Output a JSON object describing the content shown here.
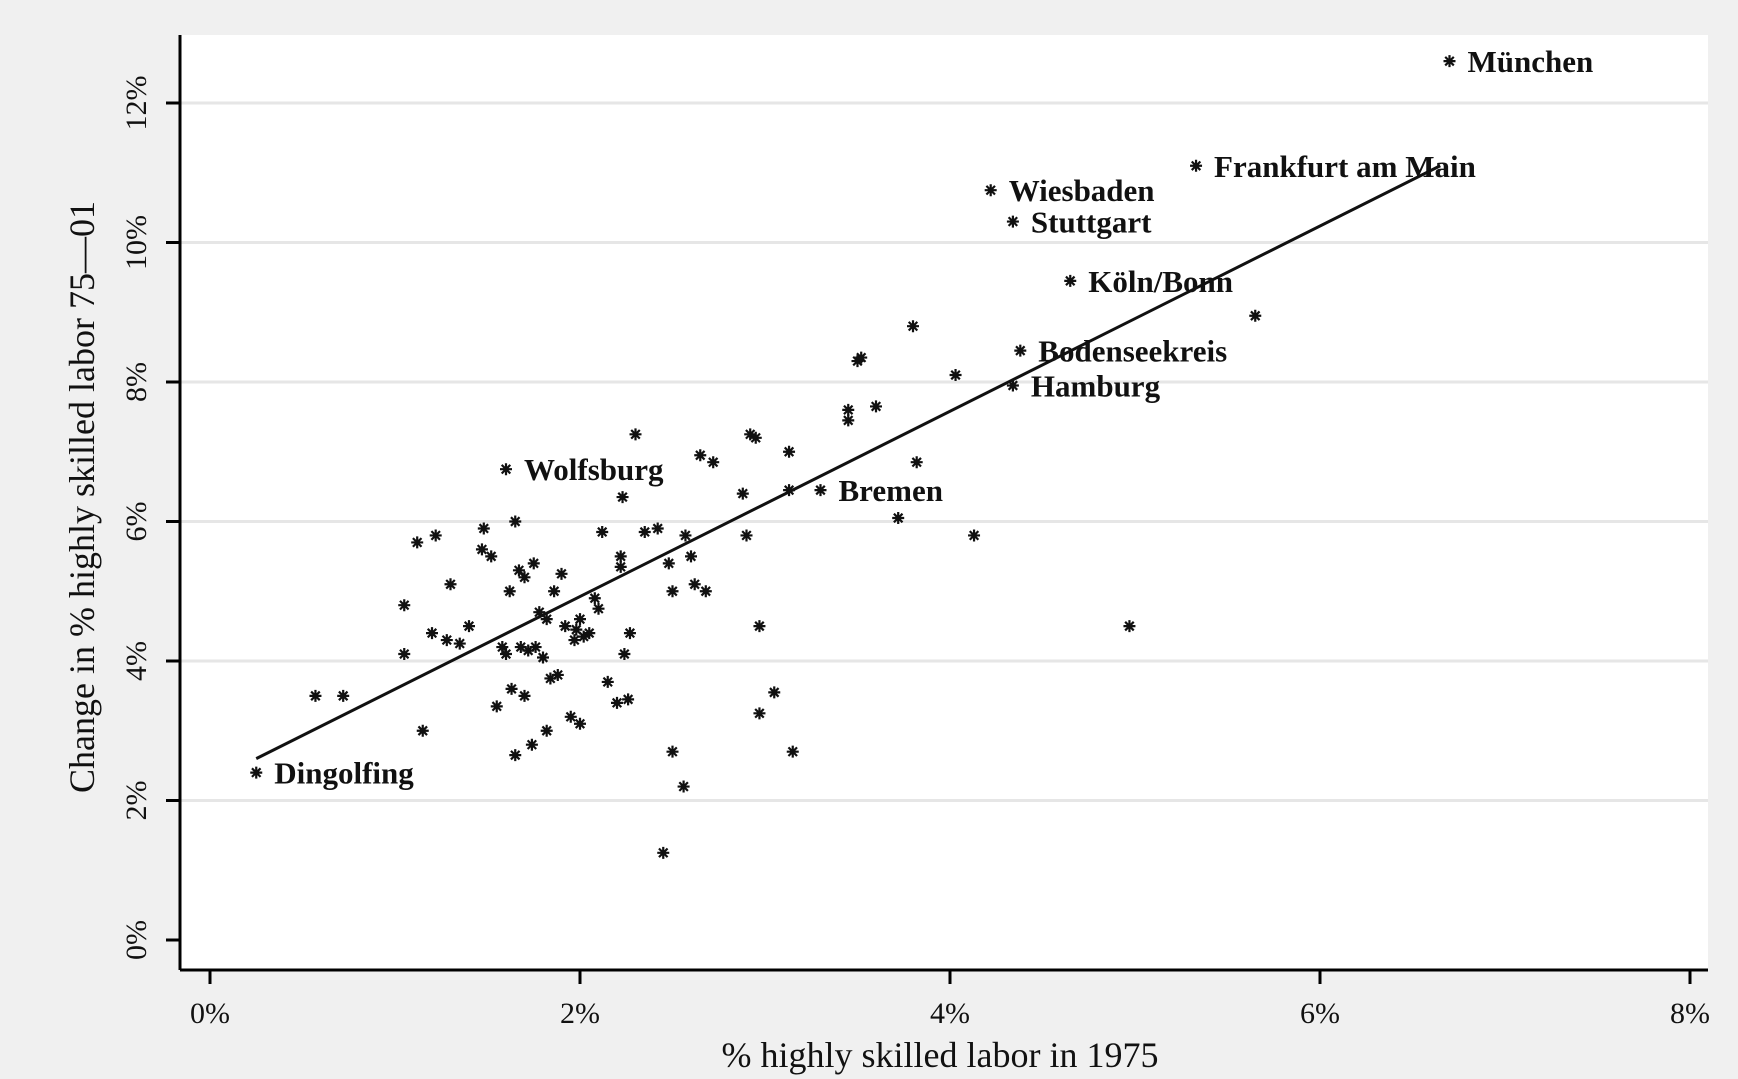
{
  "chart_data": {
    "type": "scatter",
    "xlabel": "% highly skilled labor in 1975",
    "ylabel": "Change in % highly skilled labor 75—01",
    "xlim": [
      0,
      8
    ],
    "ylim": [
      0,
      12.5
    ],
    "xticks": [
      0,
      2,
      4,
      6,
      8
    ],
    "yticks": [
      0,
      2,
      4,
      6,
      8,
      10,
      12
    ],
    "xtick_labels": [
      "0%",
      "2%",
      "4%",
      "6%",
      "8%"
    ],
    "ytick_labels": [
      "0%",
      "2%",
      "4%",
      "6%",
      "8%",
      "10%",
      "12%"
    ],
    "grid": "horizontal",
    "fit_line": {
      "x": [
        0.25,
        6.65
      ],
      "y": [
        2.6,
        11.1
      ]
    },
    "labeled_points": [
      {
        "label": "München",
        "x": 6.7,
        "y": 12.6
      },
      {
        "label": "Frankfurt am Main",
        "x": 5.33,
        "y": 11.1
      },
      {
        "label": "Wiesbaden",
        "x": 4.22,
        "y": 10.75
      },
      {
        "label": "Stuttgart",
        "x": 4.34,
        "y": 10.3
      },
      {
        "label": "Köln/Bonn",
        "x": 4.65,
        "y": 9.45
      },
      {
        "label": "Bodenseekreis",
        "x": 4.38,
        "y": 8.45
      },
      {
        "label": "Hamburg",
        "x": 4.34,
        "y": 7.95
      },
      {
        "label": "Wolfsburg",
        "x": 1.6,
        "y": 6.75
      },
      {
        "label": "Bremen",
        "x": 3.3,
        "y": 6.45
      },
      {
        "label": "Dingolfing",
        "x": 0.25,
        "y": 2.4
      }
    ],
    "points": [
      {
        "x": 0.57,
        "y": 3.5
      },
      {
        "x": 0.72,
        "y": 3.5
      },
      {
        "x": 1.05,
        "y": 4.8
      },
      {
        "x": 1.05,
        "y": 4.1
      },
      {
        "x": 1.12,
        "y": 5.7
      },
      {
        "x": 1.15,
        "y": 3.0
      },
      {
        "x": 1.2,
        "y": 4.4
      },
      {
        "x": 1.22,
        "y": 5.8
      },
      {
        "x": 1.28,
        "y": 4.3
      },
      {
        "x": 1.3,
        "y": 5.1
      },
      {
        "x": 1.35,
        "y": 4.25
      },
      {
        "x": 1.4,
        "y": 4.5
      },
      {
        "x": 1.47,
        "y": 5.6
      },
      {
        "x": 1.48,
        "y": 5.9
      },
      {
        "x": 1.52,
        "y": 5.5
      },
      {
        "x": 1.55,
        "y": 3.35
      },
      {
        "x": 1.58,
        "y": 4.2
      },
      {
        "x": 1.6,
        "y": 4.1
      },
      {
        "x": 1.62,
        "y": 5.0
      },
      {
        "x": 1.63,
        "y": 3.6
      },
      {
        "x": 1.65,
        "y": 6.0
      },
      {
        "x": 1.65,
        "y": 2.65
      },
      {
        "x": 1.67,
        "y": 5.3
      },
      {
        "x": 1.68,
        "y": 4.2
      },
      {
        "x": 1.7,
        "y": 5.2
      },
      {
        "x": 1.7,
        "y": 3.5
      },
      {
        "x": 1.72,
        "y": 4.15
      },
      {
        "x": 1.74,
        "y": 2.8
      },
      {
        "x": 1.75,
        "y": 5.4
      },
      {
        "x": 1.76,
        "y": 4.2
      },
      {
        "x": 1.78,
        "y": 4.7
      },
      {
        "x": 1.8,
        "y": 4.05
      },
      {
        "x": 1.82,
        "y": 3.0
      },
      {
        "x": 1.82,
        "y": 4.6
      },
      {
        "x": 1.84,
        "y": 3.75
      },
      {
        "x": 1.86,
        "y": 5.0
      },
      {
        "x": 1.88,
        "y": 3.8
      },
      {
        "x": 1.9,
        "y": 5.25
      },
      {
        "x": 1.92,
        "y": 4.5
      },
      {
        "x": 1.95,
        "y": 3.2
      },
      {
        "x": 1.97,
        "y": 4.3
      },
      {
        "x": 1.98,
        "y": 4.45
      },
      {
        "x": 2.0,
        "y": 3.1
      },
      {
        "x": 2.0,
        "y": 4.6
      },
      {
        "x": 2.02,
        "y": 4.35
      },
      {
        "x": 2.05,
        "y": 4.4
      },
      {
        "x": 2.08,
        "y": 4.9
      },
      {
        "x": 2.1,
        "y": 4.75
      },
      {
        "x": 2.12,
        "y": 5.85
      },
      {
        "x": 2.15,
        "y": 3.7
      },
      {
        "x": 2.2,
        "y": 3.4
      },
      {
        "x": 2.22,
        "y": 5.5
      },
      {
        "x": 2.22,
        "y": 5.35
      },
      {
        "x": 2.23,
        "y": 6.35
      },
      {
        "x": 2.24,
        "y": 4.1
      },
      {
        "x": 2.26,
        "y": 3.45
      },
      {
        "x": 2.27,
        "y": 4.4
      },
      {
        "x": 2.3,
        "y": 7.25
      },
      {
        "x": 2.35,
        "y": 5.85
      },
      {
        "x": 2.42,
        "y": 5.9
      },
      {
        "x": 2.45,
        "y": 1.25
      },
      {
        "x": 2.48,
        "y": 5.4
      },
      {
        "x": 2.5,
        "y": 2.7
      },
      {
        "x": 2.5,
        "y": 5.0
      },
      {
        "x": 2.56,
        "y": 2.2
      },
      {
        "x": 2.57,
        "y": 5.8
      },
      {
        "x": 2.6,
        "y": 5.5
      },
      {
        "x": 2.62,
        "y": 5.1
      },
      {
        "x": 2.65,
        "y": 6.95
      },
      {
        "x": 2.68,
        "y": 5.0
      },
      {
        "x": 2.72,
        "y": 6.85
      },
      {
        "x": 2.88,
        "y": 6.4
      },
      {
        "x": 2.9,
        "y": 5.8
      },
      {
        "x": 2.92,
        "y": 7.25
      },
      {
        "x": 2.95,
        "y": 7.2
      },
      {
        "x": 2.97,
        "y": 4.5
      },
      {
        "x": 2.97,
        "y": 3.25
      },
      {
        "x": 3.05,
        "y": 3.55
      },
      {
        "x": 3.13,
        "y": 6.45
      },
      {
        "x": 3.13,
        "y": 7.0
      },
      {
        "x": 3.15,
        "y": 2.7
      },
      {
        "x": 3.45,
        "y": 7.6
      },
      {
        "x": 3.45,
        "y": 7.45
      },
      {
        "x": 3.5,
        "y": 8.3
      },
      {
        "x": 3.52,
        "y": 8.35
      },
      {
        "x": 3.6,
        "y": 7.65
      },
      {
        "x": 3.72,
        "y": 6.05
      },
      {
        "x": 3.8,
        "y": 8.8
      },
      {
        "x": 3.82,
        "y": 6.85
      },
      {
        "x": 4.03,
        "y": 8.1
      },
      {
        "x": 4.13,
        "y": 5.8
      },
      {
        "x": 4.97,
        "y": 4.5
      },
      {
        "x": 5.65,
        "y": 8.95
      }
    ]
  }
}
